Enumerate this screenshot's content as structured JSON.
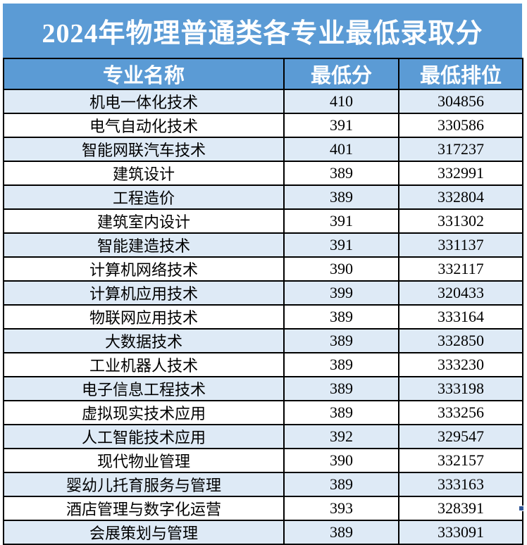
{
  "title": "2024年物理普通类各专业最低录取分",
  "colors": {
    "banner_blue": "#5B9BD5",
    "row_alt_blue": "#DEEAF6",
    "row_white": "#FFFFFF",
    "border_black": "#000000",
    "header_text": "#FFFFFF",
    "fill_handle_blue": "#2F5597"
  },
  "table": {
    "columns": [
      "专业名称",
      "最低分",
      "最低排位"
    ],
    "rows": [
      {
        "major": "机电一体化技术",
        "score": "410",
        "rank": "304856"
      },
      {
        "major": "电气自动化技术",
        "score": "391",
        "rank": "330586"
      },
      {
        "major": "智能网联汽车技术",
        "score": "401",
        "rank": "317237"
      },
      {
        "major": "建筑设计",
        "score": "389",
        "rank": "332991"
      },
      {
        "major": "工程造价",
        "score": "389",
        "rank": "332804"
      },
      {
        "major": "建筑室内设计",
        "score": "391",
        "rank": "331302"
      },
      {
        "major": "智能建造技术",
        "score": "391",
        "rank": "331137"
      },
      {
        "major": "计算机网络技术",
        "score": "390",
        "rank": "332117"
      },
      {
        "major": "计算机应用技术",
        "score": "399",
        "rank": "320433"
      },
      {
        "major": "物联网应用技术",
        "score": "389",
        "rank": "333164"
      },
      {
        "major": "大数据技术",
        "score": "389",
        "rank": "332850"
      },
      {
        "major": "工业机器人技术",
        "score": "389",
        "rank": "333230"
      },
      {
        "major": "电子信息工程技术",
        "score": "389",
        "rank": "333198"
      },
      {
        "major": "虚拟现实技术应用",
        "score": "389",
        "rank": "333256"
      },
      {
        "major": "人工智能技术应用",
        "score": "392",
        "rank": "329547"
      },
      {
        "major": "现代物业管理",
        "score": "390",
        "rank": "332157"
      },
      {
        "major": "婴幼儿托育服务与管理",
        "score": "389",
        "rank": "333163"
      },
      {
        "major": "酒店管理与数字化运营",
        "score": "393",
        "rank": "328391"
      },
      {
        "major": "会展策划与管理",
        "score": "389",
        "rank": "333091"
      }
    ]
  }
}
